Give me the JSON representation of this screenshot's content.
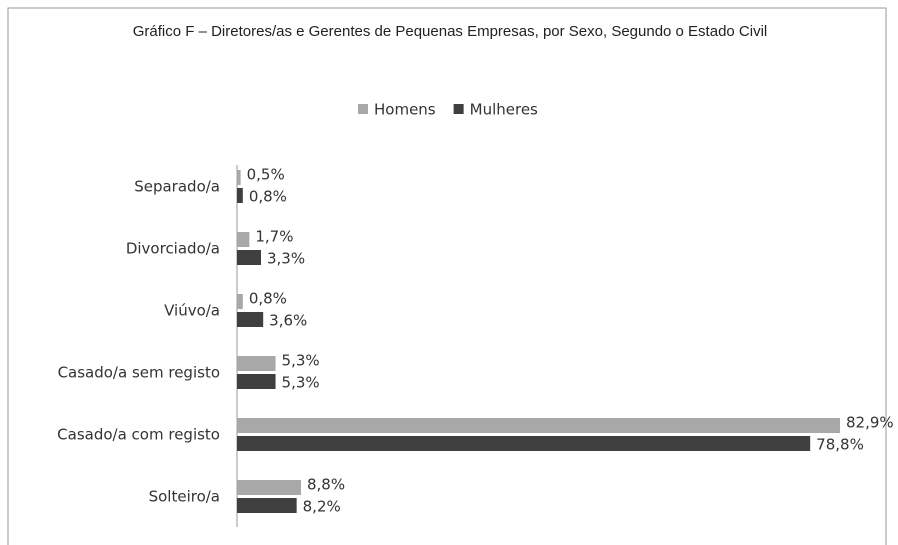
{
  "chart_data": {
    "type": "hbar",
    "title": "Gráfico F – Diretores/as e Gerentes de Pequenas Empresas, por Sexo, Segundo o Estado Civil",
    "categories": [
      "Separado/a",
      "Divorciado/a",
      "Viúvo/a",
      "Casado/a sem registo",
      "Casado/a com registo",
      "Solteiro/a"
    ],
    "series": [
      {
        "name": "Homens",
        "color": "#a8a8a8",
        "values": [
          0.5,
          1.7,
          0.8,
          5.3,
          82.9,
          8.8
        ],
        "value_labels": [
          "0,5%",
          "1,7%",
          "0,8%",
          "5,3%",
          "82,9%",
          "8,8%"
        ]
      },
      {
        "name": "Mulheres",
        "color": "#3f3f3f",
        "values": [
          0.8,
          3.3,
          3.6,
          5.3,
          78.8,
          8.2
        ],
        "value_labels": [
          "0,8%",
          "3,3%",
          "3,6%",
          "5,3%",
          "78,8%",
          "8,2%"
        ]
      }
    ],
    "legend": "top"
  }
}
